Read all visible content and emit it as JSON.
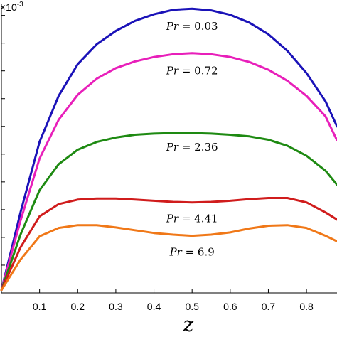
{
  "chart_data": {
    "type": "line",
    "xlabel": "z",
    "ylabel": "",
    "y_exponent_label": "×10",
    "y_exponent_power": "-3",
    "xlim": [
      0,
      0.88
    ],
    "ylim": [
      0,
      5.2
    ],
    "xticks": [
      0.1,
      0.2,
      0.3,
      0.4,
      0.5,
      0.6,
      0.7,
      0.8
    ],
    "xtick_labels": [
      "0.1",
      "0.2",
      "0.3",
      "0.4",
      "0.5",
      "0.6",
      "0.7",
      "0.8"
    ],
    "yticks": [
      0,
      0.5,
      1.0,
      1.5,
      2.0,
      2.5,
      3.0,
      3.5,
      4.0,
      4.5,
      5.0
    ],
    "grid": false,
    "x": [
      0,
      0.05,
      0.1,
      0.15,
      0.2,
      0.25,
      0.3,
      0.35,
      0.4,
      0.45,
      0.5,
      0.55,
      0.6,
      0.65,
      0.7,
      0.75,
      0.8,
      0.85,
      0.88
    ],
    "series": [
      {
        "name": "Pr = 0.03",
        "label_var": "Pr",
        "label_value": "0.03",
        "color": "#1a12b8",
        "values": [
          0.05,
          1.45,
          2.72,
          3.55,
          4.12,
          4.48,
          4.72,
          4.9,
          5.02,
          5.1,
          5.12,
          5.09,
          5.01,
          4.87,
          4.66,
          4.36,
          3.96,
          3.45,
          3.0
        ]
      },
      {
        "name": "Pr = 0.72",
        "label_var": "Pr",
        "label_value": "0.72",
        "color": "#e81fba",
        "values": [
          0.05,
          1.3,
          2.42,
          3.12,
          3.57,
          3.86,
          4.05,
          4.17,
          4.25,
          4.3,
          4.32,
          4.3,
          4.25,
          4.16,
          4.02,
          3.82,
          3.55,
          3.18,
          2.75
        ]
      },
      {
        "name": "Pr = 2.36",
        "label_var": "Pr",
        "label_value": "2.36",
        "color": "#1e8a12",
        "values": [
          0.05,
          1.05,
          1.85,
          2.32,
          2.58,
          2.72,
          2.8,
          2.85,
          2.87,
          2.88,
          2.88,
          2.87,
          2.85,
          2.82,
          2.76,
          2.65,
          2.47,
          2.2,
          1.95
        ]
      },
      {
        "name": "Pr = 4.41",
        "label_var": "Pr",
        "label_value": "4.41",
        "color": "#d01c1c",
        "values": [
          0.05,
          0.82,
          1.38,
          1.6,
          1.68,
          1.7,
          1.7,
          1.68,
          1.66,
          1.64,
          1.63,
          1.64,
          1.66,
          1.69,
          1.71,
          1.71,
          1.63,
          1.45,
          1.32
        ]
      },
      {
        "name": "Pr = 6.9",
        "label_var": "Pr",
        "label_value": "6.9",
        "color": "#f07818",
        "values": [
          0.05,
          0.6,
          1.02,
          1.17,
          1.22,
          1.22,
          1.18,
          1.13,
          1.08,
          1.05,
          1.03,
          1.05,
          1.09,
          1.16,
          1.21,
          1.22,
          1.17,
          1.03,
          0.93
        ]
      }
    ],
    "label_anchor_x": [
      0.5,
      0.5,
      0.5,
      0.5,
      0.5
    ]
  }
}
